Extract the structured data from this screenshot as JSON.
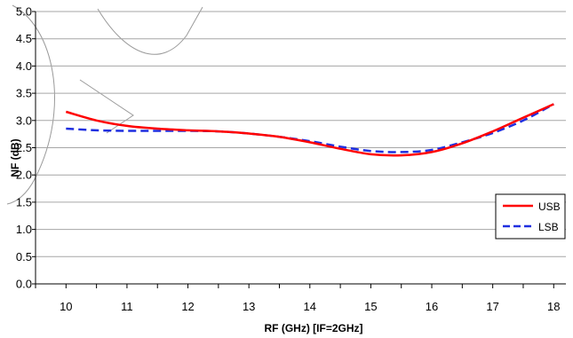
{
  "chart_data": {
    "type": "line",
    "xlabel": "RF (GHz) [IF=2GHz]",
    "ylabel": "NF (dB)",
    "xlim": [
      9.5,
      18.2
    ],
    "ylim": [
      0.0,
      5.0
    ],
    "x_ticks": [
      "10",
      "11",
      "12",
      "13",
      "14",
      "15",
      "16",
      "17",
      "18"
    ],
    "y_ticks": [
      "0.0",
      "0.5",
      "1.0",
      "1.5",
      "2.0",
      "2.5",
      "3.0",
      "3.5",
      "4.0",
      "4.5",
      "5.0"
    ],
    "grid": true,
    "legend_position": "right",
    "series": [
      {
        "name": "USB",
        "color": "#ff0000",
        "style": "solid",
        "x": [
          10.0,
          10.5,
          11.0,
          11.5,
          12.0,
          12.5,
          13.0,
          13.5,
          14.0,
          14.5,
          15.0,
          15.5,
          16.0,
          16.5,
          17.0,
          17.5,
          18.0
        ],
        "y": [
          3.16,
          3.0,
          2.9,
          2.85,
          2.82,
          2.8,
          2.76,
          2.7,
          2.6,
          2.48,
          2.38,
          2.36,
          2.42,
          2.58,
          2.8,
          3.05,
          3.3
        ]
      },
      {
        "name": "LSB",
        "color": "#1f2fe0",
        "style": "dashed",
        "x": [
          10.0,
          10.5,
          11.0,
          11.5,
          12.0,
          12.5,
          13.0,
          13.5,
          14.0,
          14.5,
          15.0,
          15.5,
          16.0,
          16.5,
          17.0,
          17.5,
          18.0
        ],
        "y": [
          2.85,
          2.82,
          2.81,
          2.81,
          2.81,
          2.8,
          2.76,
          2.7,
          2.62,
          2.52,
          2.44,
          2.42,
          2.46,
          2.6,
          2.77,
          3.0,
          3.3
        ]
      }
    ]
  }
}
